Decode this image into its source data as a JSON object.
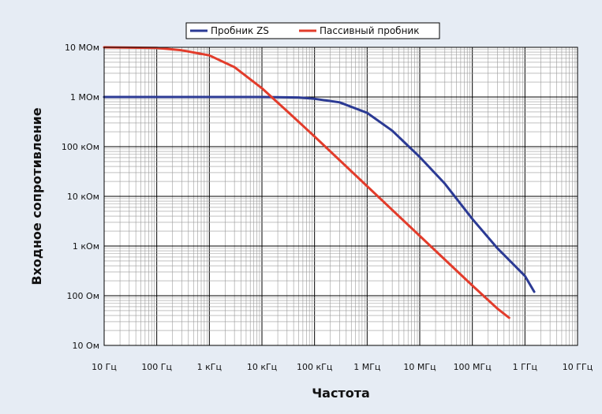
{
  "chart_data": {
    "type": "line",
    "xlabel": "Частота",
    "ylabel": "Входное сопротивление",
    "x_scale": "log",
    "y_scale": "log",
    "xlim": [
      10,
      10000000000
    ],
    "ylim": [
      10,
      10000000
    ],
    "grid": true,
    "legend_position": "top-center",
    "x_ticks": [
      {
        "value": 10,
        "label": "10 Гц"
      },
      {
        "value": 100,
        "label": "100 Гц"
      },
      {
        "value": 1000,
        "label": "1 кГц"
      },
      {
        "value": 10000,
        "label": "10 кГц"
      },
      {
        "value": 100000,
        "label": "100 кГц"
      },
      {
        "value": 1000000,
        "label": "1 МГц"
      },
      {
        "value": 10000000,
        "label": "10 МГц"
      },
      {
        "value": 100000000,
        "label": "100 МГц"
      },
      {
        "value": 1000000000,
        "label": "1 ГГц"
      },
      {
        "value": 10000000000,
        "label": "10 ГГц"
      }
    ],
    "y_ticks": [
      {
        "value": 10,
        "label": "10 Ом"
      },
      {
        "value": 100,
        "label": "100 Ом"
      },
      {
        "value": 1000,
        "label": "1 кОм"
      },
      {
        "value": 10000,
        "label": "10 кОм"
      },
      {
        "value": 100000,
        "label": "100 кОм"
      },
      {
        "value": 1000000,
        "label": "1 МОм"
      },
      {
        "value": 10000000,
        "label": "10 МОм"
      }
    ],
    "series": [
      {
        "name": "Пробник ZS",
        "color": "#2b3a94",
        "points": [
          [
            10,
            1000000
          ],
          [
            1000,
            1000000
          ],
          [
            10000,
            1000000
          ],
          [
            50000,
            980000
          ],
          [
            100000,
            920000
          ],
          [
            300000,
            780000
          ],
          [
            1000000,
            480000
          ],
          [
            3000000,
            210000
          ],
          [
            10000000,
            62000
          ],
          [
            30000000,
            18000
          ],
          [
            100000000,
            3500
          ],
          [
            300000000,
            900
          ],
          [
            1000000000,
            250
          ],
          [
            1500000000,
            120
          ]
        ]
      },
      {
        "name": "Пассивный пробник",
        "color": "#e23c2b",
        "points": [
          [
            10,
            10000000
          ],
          [
            100,
            9700000
          ],
          [
            300,
            8700000
          ],
          [
            1000,
            6900000
          ],
          [
            3000,
            4000000
          ],
          [
            10000,
            1500000
          ],
          [
            30000,
            520000
          ],
          [
            100000,
            160000
          ],
          [
            1000000,
            16000
          ],
          [
            10000000,
            1600
          ],
          [
            100000000,
            160
          ],
          [
            300000000,
            55
          ],
          [
            500000000,
            36
          ]
        ]
      }
    ]
  }
}
